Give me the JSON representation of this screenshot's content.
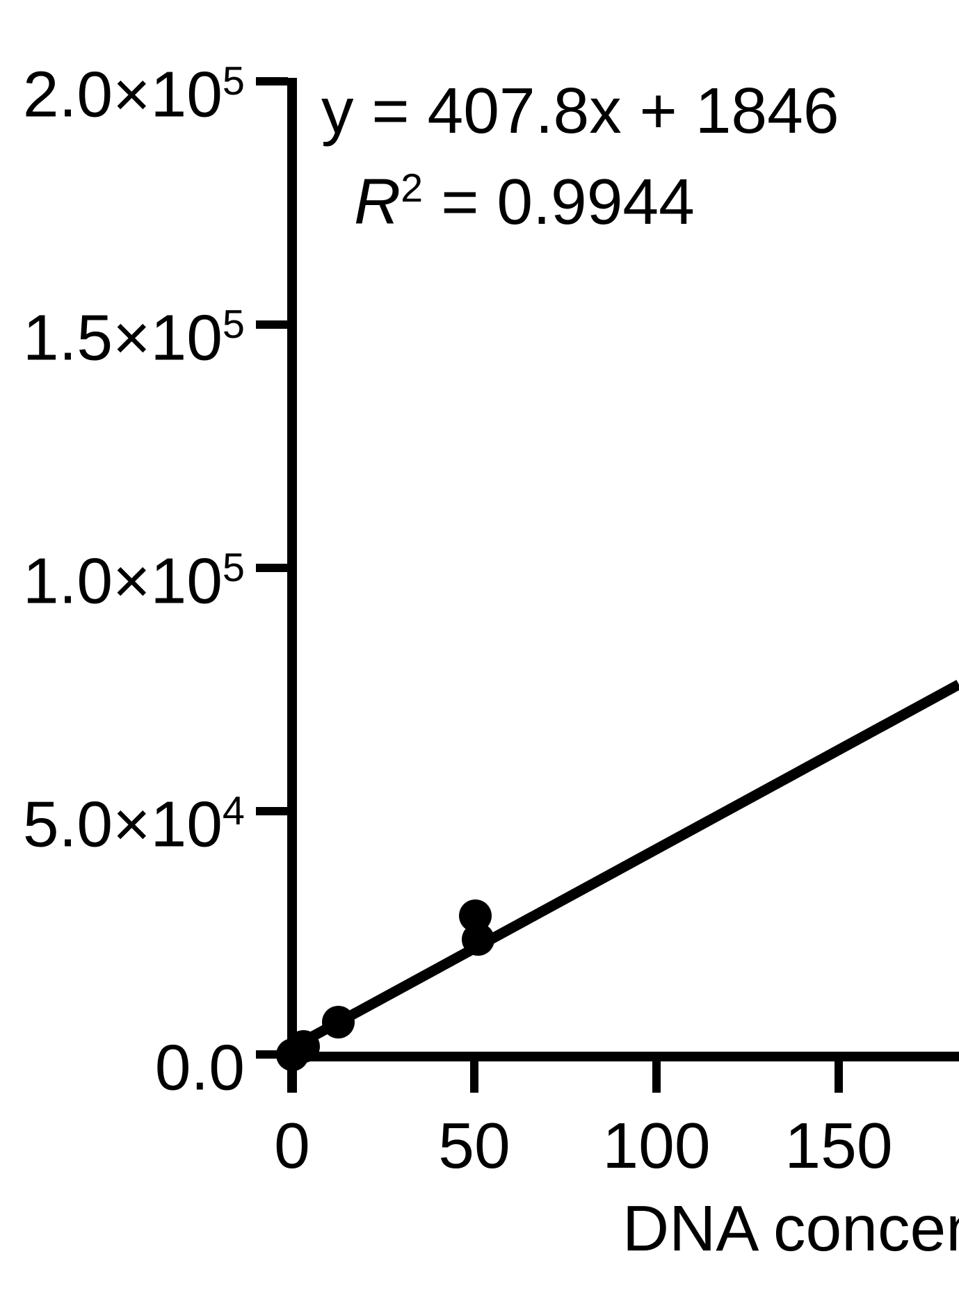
{
  "chart_data": {
    "type": "scatter",
    "title": "",
    "xlabel": "DNA concen",
    "ylabel": "",
    "x_ticks": [
      0,
      50,
      100,
      150
    ],
    "x_tick_labels": [
      "0",
      "50",
      "100",
      "150"
    ],
    "y_ticks": [
      200000,
      150000,
      100000,
      50000,
      0
    ],
    "y_tick_labels": [
      {
        "mantissa": "2.0×10",
        "exp": "5"
      },
      {
        "mantissa": "1.5×10",
        "exp": "5"
      },
      {
        "mantissa": "1.0×10",
        "exp": "5"
      },
      {
        "mantissa": "5.0×10",
        "exp": "4"
      },
      {
        "mantissa": "0.0",
        "exp": ""
      }
    ],
    "xlim": [
      0,
      183
    ],
    "ylim": [
      0,
      200000
    ],
    "grid": false,
    "legend": "none",
    "points": [
      {
        "x": 0,
        "y": 400
      },
      {
        "x": 3.2,
        "y": 2100
      },
      {
        "x": 12.6,
        "y": 7100
      },
      {
        "x": 50.2,
        "y": 28900
      },
      {
        "x": 51,
        "y": 24100
      }
    ],
    "fit": {
      "slope": 407.8,
      "intercept": 1846,
      "r_squared": 0.9944,
      "x_draw_range": [
        1.5,
        183
      ]
    },
    "annotation": {
      "equation": "y = 407.8x + 1846",
      "r_line": {
        "symbol": "R",
        "sup": "2",
        "rest": "= 0.9944"
      }
    },
    "colors": {
      "foreground": "#000000",
      "background": "#ffffff"
    }
  }
}
